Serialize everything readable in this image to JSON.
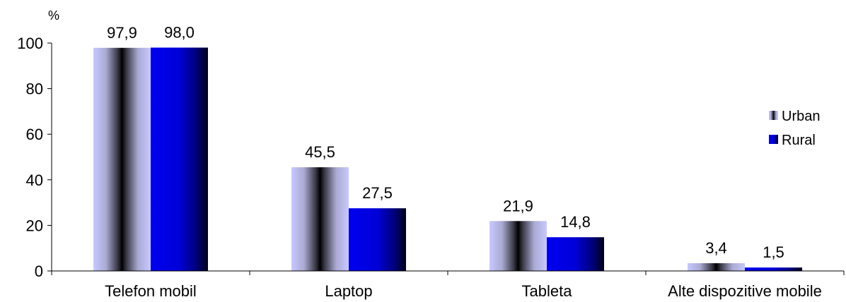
{
  "chart_data": {
    "type": "bar",
    "title": "",
    "xlabel": "",
    "ylabel": "%",
    "ylim": [
      0,
      100
    ],
    "yticks": [
      0,
      20,
      40,
      60,
      80,
      100
    ],
    "grid": false,
    "legend_position": "right",
    "categories": [
      "Telefon mobil",
      "Laptop",
      "Tableta",
      "Alte dispozitive mobile"
    ],
    "series": [
      {
        "name": "Urban",
        "values": [
          97.9,
          45.5,
          21.9,
          3.4
        ],
        "labels": [
          "97,9",
          "45,5",
          "21,9",
          "3,4"
        ],
        "color": "#c8c8ff"
      },
      {
        "name": "Rural",
        "values": [
          98.0,
          27.5,
          14.8,
          1.5
        ],
        "labels": [
          "98,0",
          "27,5",
          "14,8",
          "1,5"
        ],
        "color": "#0000e0"
      }
    ]
  }
}
